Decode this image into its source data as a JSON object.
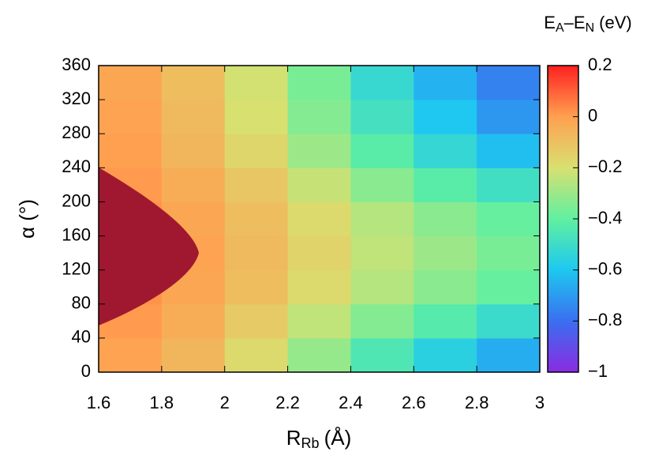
{
  "chart_data": {
    "type": "heatmap",
    "x_label": {
      "main": "R",
      "sub": "Rb",
      "unit": "(Å)"
    },
    "y_label": "α (°)",
    "colorbar_title": {
      "e1": "E",
      "s1": "A",
      "e2": "–E",
      "s2": "N",
      "unit": "(eV)"
    },
    "x": [
      1.7,
      1.9,
      2.1,
      2.3,
      2.5,
      2.7,
      2.9
    ],
    "y": [
      20,
      60,
      100,
      140,
      180,
      220,
      260,
      300,
      340
    ],
    "z": [
      [
        -0.01,
        -0.07,
        -0.18,
        -0.31,
        -0.45,
        -0.56,
        -0.66
      ],
      [
        0.01,
        -0.04,
        -0.13,
        -0.24,
        -0.34,
        -0.43,
        -0.51
      ],
      [
        0.02,
        -0.02,
        -0.09,
        -0.18,
        -0.26,
        -0.33,
        -0.39
      ],
      [
        0.02,
        -0.01,
        -0.08,
        -0.16,
        -0.24,
        -0.3,
        -0.36
      ],
      [
        0.02,
        -0.02,
        -0.09,
        -0.18,
        -0.26,
        -0.33,
        -0.39
      ],
      [
        0.01,
        -0.04,
        -0.12,
        -0.23,
        -0.33,
        -0.42,
        -0.49
      ],
      [
        0,
        -0.07,
        -0.17,
        -0.3,
        -0.42,
        -0.53,
        -0.62
      ],
      [
        -0.01,
        -0.08,
        -0.2,
        -0.34,
        -0.48,
        -0.6,
        -0.71
      ],
      [
        -0.02,
        -0.09,
        -0.21,
        -0.36,
        -0.52,
        -0.65,
        -0.76
      ]
    ],
    "xlim": [
      1.6,
      3
    ],
    "xticks": [
      1.6,
      1.8,
      2,
      2.2,
      2.4,
      2.6,
      2.8,
      3
    ],
    "ylim": [
      0,
      360
    ],
    "yticks": [
      0,
      40,
      80,
      120,
      160,
      200,
      240,
      280,
      320,
      360
    ],
    "zlim": [
      -1,
      0.2
    ],
    "zticks": [
      {
        "value": -1,
        "label": "−1"
      },
      {
        "value": -0.8,
        "label": "−0.8"
      },
      {
        "value": -0.6,
        "label": "−0.6"
      },
      {
        "value": -0.4,
        "label": "−0.4"
      },
      {
        "value": -0.2,
        "label": "−0.2"
      },
      0,
      0.2
    ],
    "colormap": [
      "#8a2be2",
      "#3a6ff0",
      "#1ec8f0",
      "#60f0a0",
      "#d8e070",
      "#ffa050",
      "#ff2020"
    ]
  }
}
